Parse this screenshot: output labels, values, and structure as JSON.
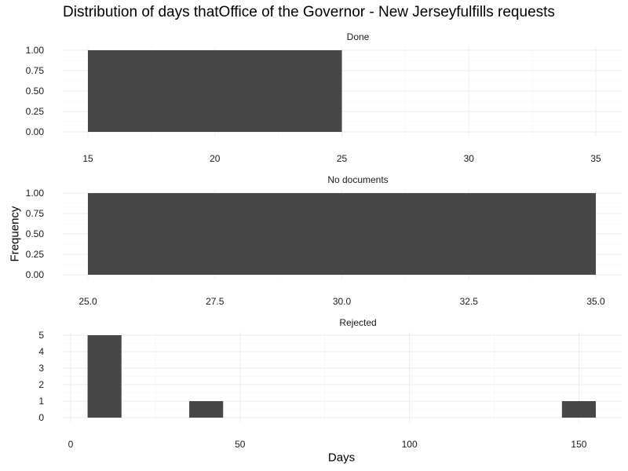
{
  "title": "Distribution of days thatOffice of the Governor - New Jerseyfulfills requests",
  "xlabel": "Days",
  "ylabel": "Frequency",
  "chart_data": {
    "type": "bar",
    "title": "Distribution of days thatOffice of the Governor - New Jerseyfulfills requests",
    "xlabel": "Days",
    "ylabel": "Frequency",
    "grid": true,
    "facets": [
      {
        "strip": "Done",
        "xlim": [
          15,
          35
        ],
        "ylim": [
          0,
          1
        ],
        "x_ticks": [
          "15",
          "20",
          "25",
          "30",
          "35"
        ],
        "x_tick_values": [
          15,
          20,
          25,
          30,
          35
        ],
        "y_ticks": [
          "0.00",
          "0.25",
          "0.50",
          "0.75",
          "1.00"
        ],
        "y_tick_values": [
          0,
          0.25,
          0.5,
          0.75,
          1
        ],
        "bins": [
          {
            "x0": 15,
            "x1": 25,
            "count": 1
          }
        ]
      },
      {
        "strip": "No documents",
        "xlim": [
          25,
          35
        ],
        "ylim": [
          0,
          1
        ],
        "x_ticks": [
          "25.0",
          "27.5",
          "30.0",
          "32.5",
          "35.0"
        ],
        "x_tick_values": [
          25,
          27.5,
          30,
          32.5,
          35
        ],
        "y_ticks": [
          "0.00",
          "0.25",
          "0.50",
          "0.75",
          "1.00"
        ],
        "y_tick_values": [
          0,
          0.25,
          0.5,
          0.75,
          1
        ],
        "bins": [
          {
            "x0": 25,
            "x1": 35,
            "count": 1
          }
        ]
      },
      {
        "strip": "Rejected",
        "xlim": [
          0,
          155
        ],
        "ylim": [
          0,
          5
        ],
        "x_ticks": [
          "0",
          "50",
          "100",
          "150"
        ],
        "x_tick_values": [
          0,
          50,
          100,
          150
        ],
        "y_ticks": [
          "0",
          "1",
          "2",
          "3",
          "4",
          "5"
        ],
        "y_tick_values": [
          0,
          1,
          2,
          3,
          4,
          5
        ],
        "bins": [
          {
            "x0": 5,
            "x1": 15,
            "count": 5
          },
          {
            "x0": 35,
            "x1": 45,
            "count": 1
          },
          {
            "x0": 145,
            "x1": 155,
            "count": 1
          }
        ]
      }
    ]
  }
}
